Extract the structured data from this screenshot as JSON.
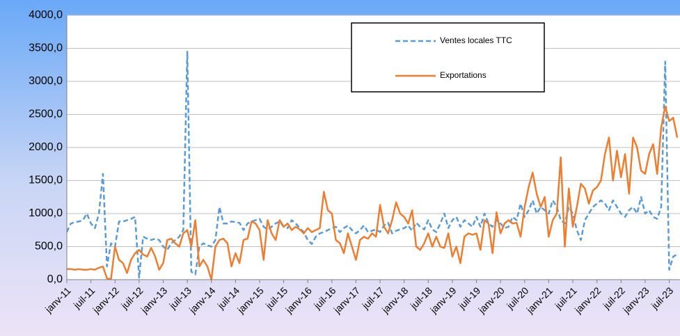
{
  "chart_data": {
    "type": "line",
    "categories": [
      "janv-11",
      null,
      null,
      null,
      null,
      null,
      "juil-11",
      null,
      null,
      null,
      null,
      null,
      "janv-12",
      null,
      null,
      null,
      null,
      null,
      "juil-12",
      null,
      null,
      null,
      null,
      null,
      "janv-13",
      null,
      null,
      null,
      null,
      null,
      "juil-13",
      null,
      null,
      null,
      null,
      null,
      "janv-14",
      null,
      null,
      null,
      null,
      null,
      "juil-14",
      null,
      null,
      null,
      null,
      null,
      "janv-15",
      null,
      null,
      null,
      null,
      null,
      "juil-15",
      null,
      null,
      null,
      null,
      null,
      "janv-16",
      null,
      null,
      null,
      null,
      null,
      "juil-16",
      null,
      null,
      null,
      null,
      null,
      "janv-17",
      null,
      null,
      null,
      null,
      null,
      "juil-17",
      null,
      null,
      null,
      null,
      null,
      "janv-18",
      null,
      null,
      null,
      null,
      null,
      "juil-18",
      null,
      null,
      null,
      null,
      null,
      "janv-19",
      null,
      null,
      null,
      null,
      null,
      "juil-19",
      null,
      null,
      null,
      null,
      null,
      "janv-20",
      null,
      null,
      null,
      null,
      null,
      "juil-20",
      null,
      null,
      null,
      null,
      null,
      "janv-21",
      null,
      null,
      null,
      null,
      null,
      "juil-21",
      null,
      null,
      null,
      null,
      null,
      "janv-22",
      null,
      null,
      null,
      null,
      null,
      "juil-22",
      null,
      null,
      null,
      null,
      null,
      "janv-23",
      null,
      null,
      null,
      null,
      null,
      "juil-23",
      null,
      null
    ],
    "series": [
      {
        "name": "Ventes locales TTC",
        "color": "#5b9bd5",
        "dashed": true,
        "values": [
          720,
          850,
          870,
          880,
          900,
          1000,
          850,
          780,
          1000,
          1600,
          200,
          550,
          500,
          880,
          880,
          900,
          920,
          950,
          30,
          650,
          620,
          600,
          620,
          600,
          500,
          450,
          550,
          600,
          650,
          750,
          3450,
          120,
          80,
          500,
          550,
          520,
          500,
          600,
          1100,
          850,
          850,
          880,
          870,
          860,
          750,
          850,
          880,
          900,
          920,
          800,
          760,
          800,
          850,
          880,
          800,
          780,
          900,
          850,
          780,
          720,
          600,
          540,
          650,
          700,
          720,
          750,
          780,
          800,
          720,
          780,
          820,
          750,
          700,
          750,
          820,
          720,
          740,
          760,
          720,
          820,
          860,
          700,
          740,
          760,
          780,
          820,
          740,
          860,
          800,
          760,
          900,
          760,
          720,
          850,
          1000,
          780,
          900,
          950,
          800,
          900,
          850,
          800,
          950,
          800,
          1000,
          850,
          800,
          900,
          850,
          780,
          800,
          950,
          900,
          1150,
          950,
          1050,
          1200,
          1000,
          1100,
          1050,
          1000,
          1200,
          1100,
          900,
          850,
          1100,
          1000,
          750,
          600,
          900,
          1000,
          1100,
          1150,
          1200,
          1150,
          1050,
          1200,
          1100,
          1000,
          950,
          1050,
          1100,
          1000,
          1250,
          1000,
          1050,
          950,
          920,
          1100,
          3300,
          150,
          350,
          380
        ]
      },
      {
        "name": "Exportations",
        "color": "#ed7d31",
        "dashed": false,
        "values": [
          160,
          160,
          150,
          160,
          150,
          150,
          160,
          150,
          180,
          200,
          20,
          10,
          500,
          300,
          250,
          100,
          300,
          400,
          450,
          380,
          350,
          480,
          350,
          150,
          250,
          600,
          620,
          550,
          500,
          700,
          750,
          500,
          900,
          200,
          300,
          200,
          0,
          500,
          600,
          620,
          550,
          200,
          400,
          250,
          600,
          620,
          880,
          850,
          750,
          300,
          900,
          700,
          600,
          900,
          800,
          850,
          750,
          800,
          760,
          700,
          780,
          720,
          750,
          780,
          1330,
          1050,
          1000,
          600,
          550,
          400,
          700,
          500,
          300,
          600,
          650,
          620,
          700,
          650,
          1130,
          800,
          700,
          900,
          1170,
          1000,
          950,
          850,
          1050,
          500,
          450,
          550,
          700,
          500,
          650,
          500,
          480,
          700,
          350,
          500,
          250,
          650,
          700,
          680,
          700,
          450,
          900,
          850,
          400,
          1020,
          700,
          850,
          900,
          850,
          860,
          650,
          1100,
          1400,
          1620,
          1300,
          1100,
          1250,
          650,
          900,
          1000,
          1850,
          500,
          1380,
          800,
          1100,
          1450,
          1380,
          1150,
          1350,
          1400,
          1500,
          1900,
          2150,
          1500,
          1950,
          1550,
          1900,
          1300,
          2150,
          2000,
          1650,
          1600,
          1900,
          2050,
          1600,
          2300,
          2620,
          2400,
          2450,
          2150
        ]
      }
    ],
    "ylim": [
      0,
      4000
    ],
    "yticks": [
      {
        "value": 0,
        "label": "0,0"
      },
      {
        "value": 500,
        "label": "500,0"
      },
      {
        "value": 1000,
        "label": "1000,0"
      },
      {
        "value": 1500,
        "label": "1500,0"
      },
      {
        "value": 2000,
        "label": "2000,0"
      },
      {
        "value": 2500,
        "label": "2500,0"
      },
      {
        "value": 3000,
        "label": "3000,0"
      },
      {
        "value": 3500,
        "label": "3500,0"
      },
      {
        "value": 4000,
        "label": "4000,0"
      }
    ],
    "grid": true
  }
}
